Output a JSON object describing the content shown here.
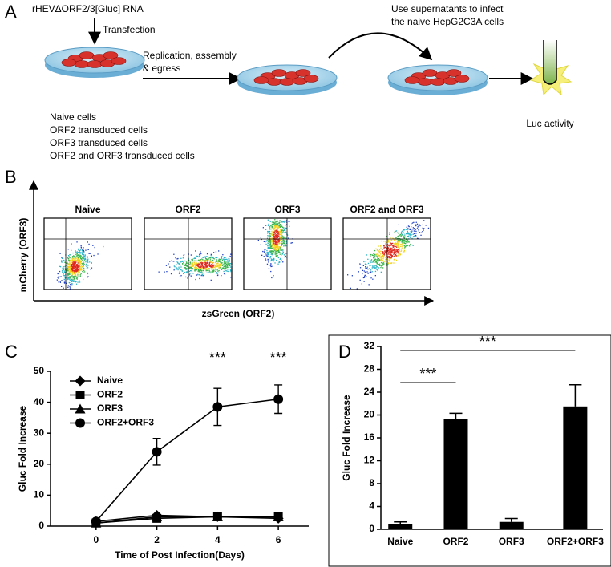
{
  "panel_a": {
    "label": "A",
    "rna": "rHEVΔORF2/3[Gluc] RNA",
    "step1": "Transfection",
    "step2": [
      "Replication, assembly",
      "& egress"
    ],
    "step3": [
      "Use supernatants to infect",
      "the naive HepG2C3A cells"
    ],
    "cells": [
      "Naive cells",
      "ORF2 transduced cells",
      "ORF3 transduced cells",
      "ORF2 and ORF3 transduced cells"
    ],
    "readout": "Luc activity"
  },
  "panel_b": {
    "label": "B",
    "plots": [
      "Naive",
      "ORF2",
      "ORF3",
      "ORF2 and ORF3"
    ],
    "y_label": "mCherry (ORF3)",
    "x_label": "zsGreen (ORF2)"
  },
  "chart_data": [
    {
      "type": "line",
      "panel": "C",
      "x": [
        0,
        2,
        4,
        6
      ],
      "xlim": [
        -1.5,
        7
      ],
      "xticks": [
        0,
        2,
        4,
        6
      ],
      "ylim": [
        0,
        50
      ],
      "yticks": [
        0,
        10,
        20,
        30,
        40,
        50
      ],
      "x_label": "Time of Post Infection(Days)",
      "y_label": "Gluc Fold Increase",
      "legend": "upper left",
      "series": [
        {
          "name": "Naive",
          "color": "#000000",
          "marker": "diamond",
          "values": [
            1.5,
            3.5,
            3,
            2.5
          ]
        },
        {
          "name": "ORF2",
          "color": "#000000",
          "marker": "square",
          "values": [
            1,
            2.5,
            3,
            3
          ]
        },
        {
          "name": "ORF3",
          "color": "#000000",
          "marker": "triangle",
          "values": [
            1,
            3,
            3,
            3
          ]
        },
        {
          "name": "ORF2+ORF3",
          "color": "#000000",
          "marker": "circle",
          "values": [
            1.5,
            24,
            38.5,
            41
          ],
          "errors": [
            0.5,
            4.3,
            6,
            4.6
          ]
        }
      ],
      "annotations": [
        {
          "text": "***",
          "x": 4
        },
        {
          "text": "***",
          "x": 6
        }
      ]
    },
    {
      "type": "bar",
      "panel": "D",
      "categories": [
        "Naive",
        "ORF2",
        "ORF3",
        "ORF2+ORF3"
      ],
      "values": [
        0.9,
        19.3,
        1.3,
        21.5
      ],
      "errors": [
        0.4,
        1.0,
        0.6,
        3.8
      ],
      "color": "#000000",
      "ylim": [
        0,
        32
      ],
      "yticks": [
        0,
        4,
        8,
        12,
        16,
        20,
        24,
        28,
        32
      ],
      "y_label": "Gluc Fold Increase",
      "significance": [
        {
          "text": "***",
          "from": 0,
          "to": 1
        },
        {
          "text": "***",
          "from": 0,
          "to": 3
        }
      ]
    }
  ]
}
